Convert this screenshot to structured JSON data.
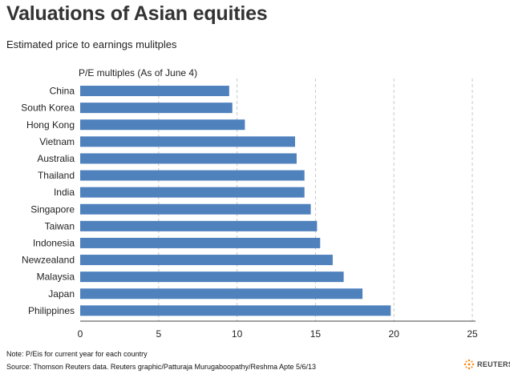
{
  "chart_data": {
    "type": "bar",
    "orientation": "horizontal",
    "title": "Valuations of Asian equities",
    "subtitle": "Estimated price to earnings mulitples",
    "xlabel": "P/E multiples (As of June 4)",
    "ylabel": "",
    "xlim": [
      0,
      25
    ],
    "xticks": [
      "0",
      "5",
      "10",
      "15",
      "20",
      "25"
    ],
    "grid": "vertical dashed",
    "bar_color": "#4f81bd",
    "categories": [
      "China",
      "South Korea",
      "Hong Kong",
      "Vietnam",
      "Australia",
      "Thailand",
      "India",
      "Singapore",
      "Taiwan",
      "Indonesia",
      "Newzealand",
      "Malaysia",
      "Japan",
      "Philippines"
    ],
    "values": [
      9.5,
      9.7,
      10.5,
      13.7,
      13.8,
      14.3,
      14.3,
      14.7,
      15.1,
      15.3,
      16.1,
      16.8,
      18.0,
      19.8
    ]
  },
  "footer": {
    "note": "Note: P/Eis for current year for each country",
    "source": "Source: Thomson Reuters data.  Reuters graphic/Patturaja Murugaboopathy/Reshma Apte 5/6/13",
    "logo_text": "REUTERS"
  }
}
